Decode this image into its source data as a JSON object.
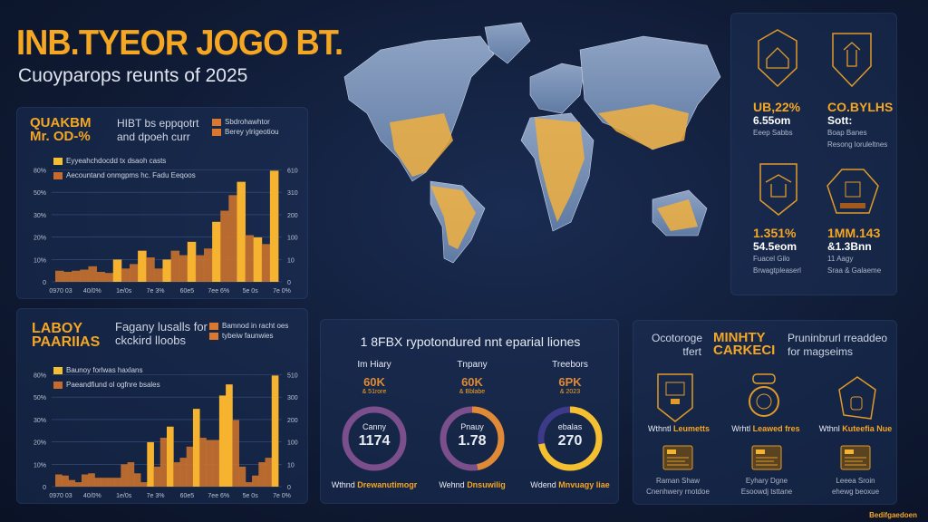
{
  "header": {
    "title": "INB.TYEOR JOGO BT.",
    "subtitle": "Cuoyparops reunts of 2025"
  },
  "colors": {
    "background": "#0f1a33",
    "accent": "#f5a623",
    "accent2": "#d9782e",
    "purple": "#7a4f8c",
    "indigo": "#3e3a8a"
  },
  "panel1": {
    "heading": [
      "QUAKBM",
      "Mr. OD-%"
    ],
    "desc": [
      "HIBT bs eppqotrt",
      "and dpoeh curr"
    ],
    "legend_top": [
      "Sbdrohawhtor",
      "Berey ylrigeotiou"
    ],
    "legend_inner": [
      "Eyyeahchdocdd tx dsaoh casts",
      "Aecountand onmgpms hc. Fadu Eeqoos"
    ]
  },
  "panel2": {
    "heading": [
      "LABOY",
      "PAARIIAS"
    ],
    "desc": [
      "Fagany lusalls for",
      "ckckird lloobs"
    ],
    "legend_top": [
      "Bamnod in racht oes",
      "tybeiw faunwies"
    ],
    "legend_inner": [
      "Baunoy forlwas haxlans",
      "Paeandfiund ol ogfnre bsales"
    ]
  },
  "chart_data": [
    {
      "type": "bar",
      "title": "",
      "yticks_left": [
        "0",
        "10%",
        "20%",
        "30%",
        "50%",
        "80%"
      ],
      "yticks_right": [
        "0",
        "10",
        "100",
        "200",
        "310",
        "610"
      ],
      "xticks": [
        "0970 03",
        "40/0%",
        "1e/0s",
        "7e 3%",
        "60e5",
        "7ee 6%",
        "5e 0s",
        "7e 0%"
      ],
      "ylim": [
        0,
        5.3
      ],
      "grid": true,
      "series": [
        {
          "color": "#f5a623",
          "values": [
            0.5,
            0.45,
            0.5,
            0.55,
            0.7,
            0.45,
            0.4,
            1.0,
            0.6,
            0.8,
            1.4,
            1.1,
            0.6,
            1.0,
            1.4,
            1.2,
            1.8,
            1.2,
            1.5,
            2.7,
            3.2,
            3.9,
            4.5,
            2.1,
            2.0,
            1.7,
            5.0
          ],
          "highlight": [
            0,
            0,
            0,
            0,
            0,
            0,
            0,
            1,
            0,
            0,
            1,
            0,
            0,
            1,
            0,
            0,
            1,
            0,
            0,
            1,
            0,
            0,
            1,
            0,
            1,
            0,
            1
          ]
        }
      ]
    },
    {
      "type": "bar",
      "title": "",
      "yticks_left": [
        "0",
        "10%",
        "20%",
        "30%",
        "50%",
        "80%"
      ],
      "yticks_right": [
        "0",
        "10",
        "100",
        "200",
        "300",
        "510"
      ],
      "xticks": [
        "0970 03",
        "40/0%",
        "1e/0s",
        "7e 3%",
        "60e5",
        "7ee 6%",
        "5e 0s",
        "7e 0%"
      ],
      "ylim": [
        0,
        5.3
      ],
      "grid": true,
      "series": [
        {
          "color": "#f5a623",
          "values": [
            0.55,
            0.5,
            0.3,
            0.2,
            0.55,
            0.6,
            0.4,
            0.4,
            0.4,
            0.4,
            1.0,
            1.1,
            0.6,
            0.2,
            2.0,
            0.9,
            2.2,
            2.7,
            1.1,
            1.3,
            1.8,
            3.5,
            2.2,
            2.1,
            2.1,
            4.1,
            4.6,
            3.0,
            0.9,
            0.2,
            0.5,
            1.1,
            1.3,
            5.0
          ],
          "highlight": [
            0,
            0,
            0,
            0,
            0,
            0,
            0,
            0,
            0,
            0,
            0,
            0,
            0,
            0,
            1,
            0,
            0,
            1,
            0,
            0,
            0,
            1,
            0,
            0,
            0,
            1,
            1,
            0,
            0,
            0,
            0,
            0,
            0,
            1
          ]
        }
      ]
    }
  ],
  "stats": [
    {
      "value": "UB,22%",
      "sub": "6.55om",
      "label": [
        "Eeep Sabbs"
      ]
    },
    {
      "value": "CO.BYLHS",
      "sub": "Sott:",
      "label": [
        "Boap Banes",
        "Resong loruleltnes"
      ]
    },
    {
      "value": "1.351%",
      "sub": "54.5eom",
      "label": [
        "Fuacel Gilo",
        "Brwagtpleaserl"
      ]
    },
    {
      "value": "1MM.143",
      "sub": "&1.3Bnn",
      "label": [
        "11 Aagy",
        "Sraa & Galaeme"
      ]
    }
  ],
  "donuts": {
    "title": "1 8FBX rypotondured nnt eparial liones",
    "items": [
      {
        "name": "Im Hiary",
        "pct": "60K",
        "sub": "& 51rore",
        "center_label": "Canny",
        "center_value": "1174",
        "caption": "Wthnd",
        "caption_hl": "Drewanutimogr",
        "fraction": 0,
        "ring": "#7a4f8c",
        "fill": "#7a4f8c"
      },
      {
        "name": "Tnpany",
        "pct": "60K",
        "sub": "& Bblabe",
        "center_label": "Pnauy",
        "center_value": "1.78",
        "caption": "Wehnd",
        "caption_hl": "Dnsuwilig",
        "fraction": 0.47,
        "ring": "#7a4f8c",
        "fill": "#e08a35"
      },
      {
        "name": "Treebors",
        "pct": "6PK",
        "sub": "& 2023",
        "center_label": "ebalas",
        "center_value": "270",
        "caption": "Wdend",
        "caption_hl": "Mnvuagy liae",
        "fraction": 0.72,
        "ring": "#3e3a8a",
        "fill": "#f5c030"
      }
    ]
  },
  "minty": {
    "left": [
      "Ocotoroge",
      "tfert"
    ],
    "heading": [
      "MINHTY",
      "CARKECI"
    ],
    "right": [
      "Pruninbrurl rreaddeo",
      "for magseims"
    ],
    "icons": [
      {
        "icon": "shield-monitor-icon",
        "caption": "Wthntl",
        "caption_hl": "Leumetts"
      },
      {
        "icon": "ring-icon",
        "caption": "Wrhtl",
        "caption_hl": "Leawed fres"
      },
      {
        "icon": "house-tag-icon",
        "caption": "Wthnl",
        "caption_hl": "Kuteefia Nue"
      }
    ],
    "cards": [
      {
        "icon": "card-stack-icon",
        "label": [
          "Raman Shaw",
          "Cnenhwery rnotdoe"
        ]
      },
      {
        "icon": "card-stack-icon",
        "label": [
          "Eyhary Dgne",
          "Esoowdj tsttane"
        ]
      },
      {
        "icon": "card-stack-icon",
        "label": [
          "Leeea Sroin",
          "ehewg beoxue"
        ]
      }
    ]
  },
  "footer": {
    "credit": "Bedifgaedoen"
  }
}
